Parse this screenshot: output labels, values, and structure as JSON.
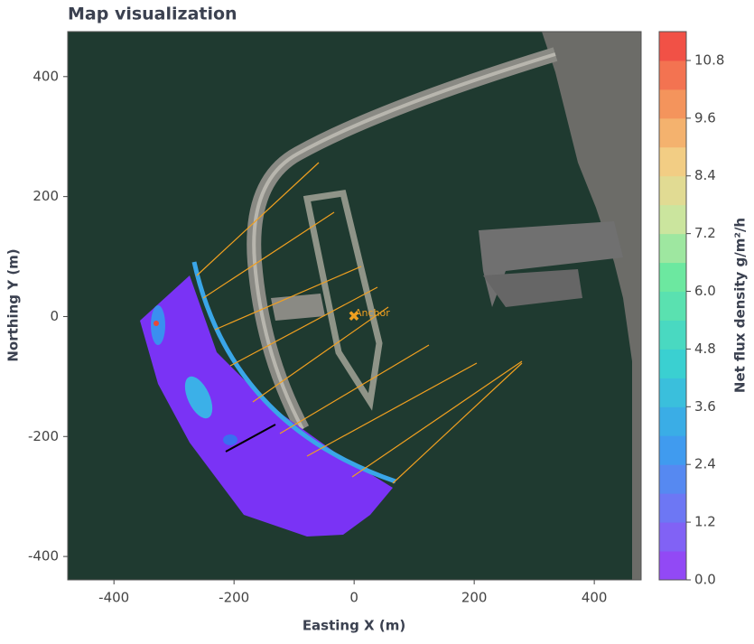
{
  "chart_data": {
    "type": "map",
    "title": "Map visualization",
    "x_label": "Easting X (m)",
    "y_label": "Northing Y (m)",
    "xlim": [
      -477,
      478
    ],
    "ylim": [
      -439,
      475
    ],
    "xticks": [
      -400,
      -200,
      0,
      200,
      400
    ],
    "yticks": [
      -400,
      -200,
      0,
      200,
      400
    ],
    "annotation": "Anchor",
    "colorbar": {
      "label": "Net flux density g/m²/h",
      "lim": [
        0,
        11.4
      ],
      "ticks": [
        {
          "value": 0,
          "label": "0.0"
        },
        1.2,
        2.4,
        3.6,
        4.8,
        {
          "value": 6,
          "label": "6.0"
        },
        7.2,
        8.4,
        9.6,
        10.8
      ]
    }
  }
}
